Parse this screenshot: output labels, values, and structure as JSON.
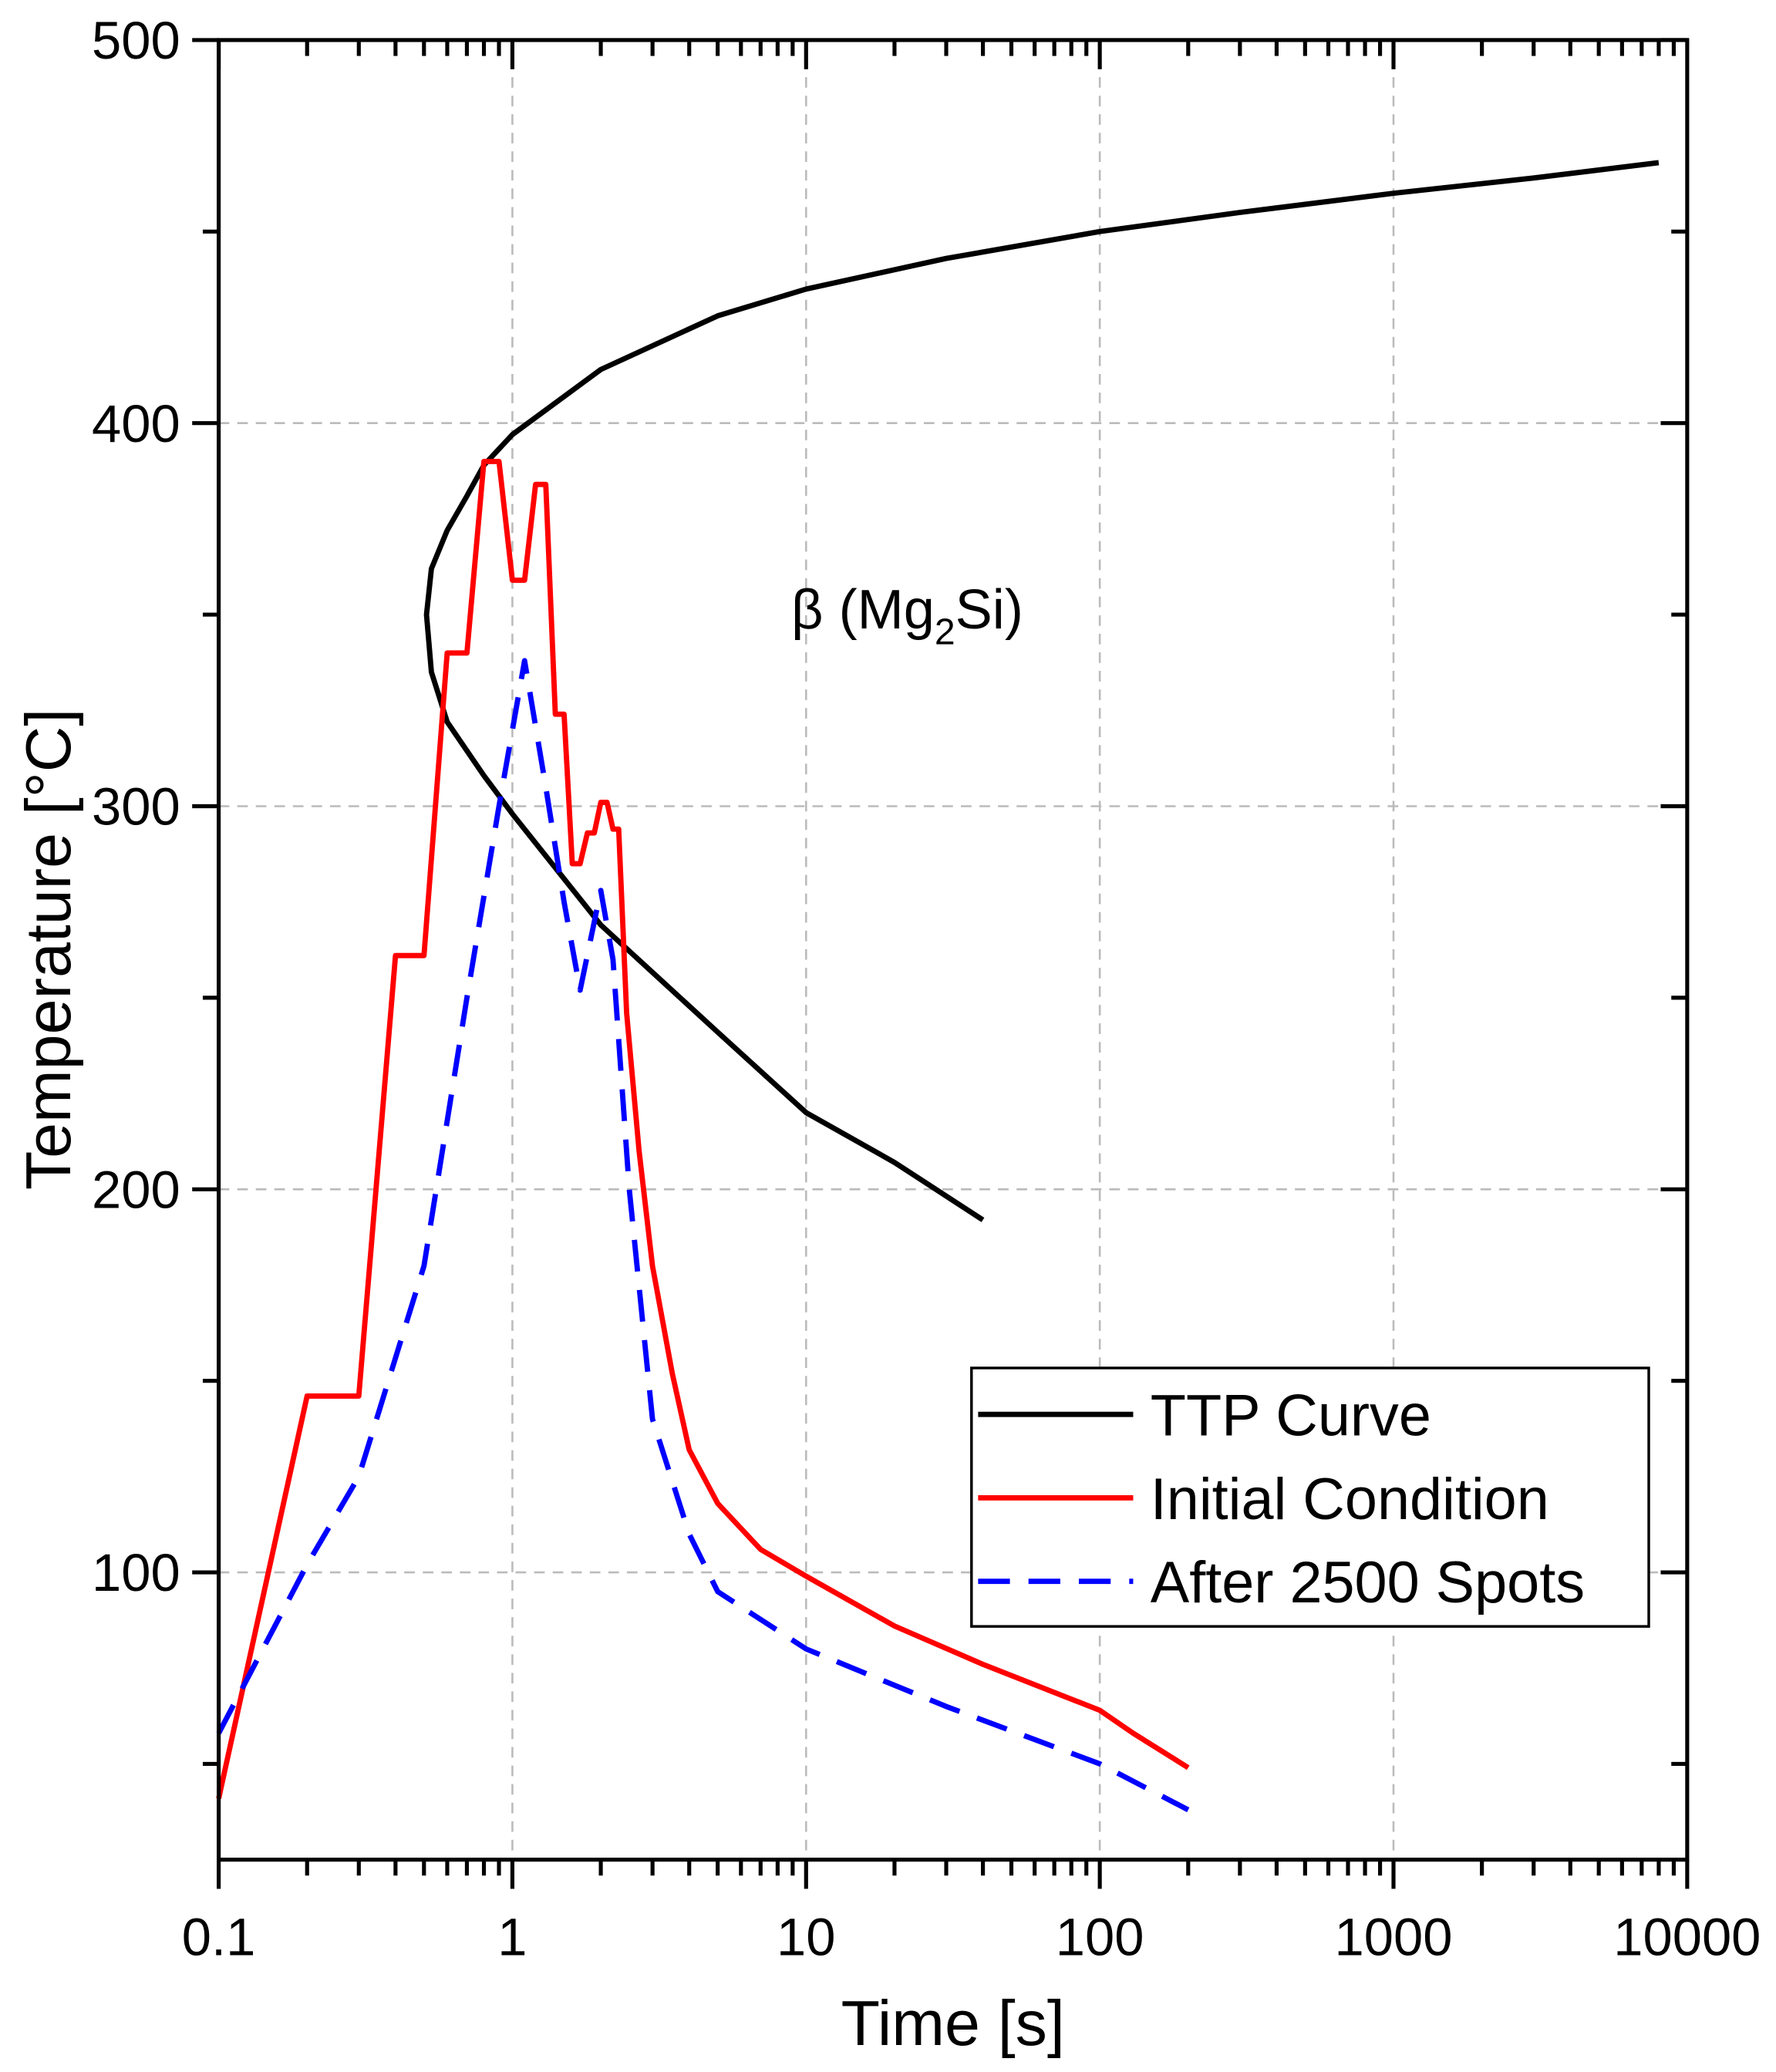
{
  "chart_data": {
    "type": "line",
    "title": "",
    "xlabel": "Time [s]",
    "ylabel": "Temperature [°C]",
    "xscale": "log",
    "xlim": [
      0.1,
      10000
    ],
    "ylim": [
      25,
      500
    ],
    "xticks": [
      0.1,
      1,
      10,
      100,
      1000,
      10000
    ],
    "xtick_labels": [
      "0.1",
      "1",
      "10",
      "100",
      "1000",
      "10000"
    ],
    "yticks": [
      100,
      200,
      300,
      400,
      500
    ],
    "ytick_labels": [
      "100",
      "200",
      "300",
      "400",
      "500"
    ],
    "grid": true,
    "legend_position": "lower-right",
    "annotation": {
      "text": "β (Mg",
      "sub": "2",
      "tail": "Si)",
      "x": 2.8,
      "y": 350
    },
    "series": [
      {
        "name": "TTP Curve",
        "color": "#000000",
        "dash": "solid",
        "points": [
          [
            40,
            192
          ],
          [
            20,
            207
          ],
          [
            10,
            220
          ],
          [
            5,
            241
          ],
          [
            2,
            269
          ],
          [
            1,
            298
          ],
          [
            0.8,
            308
          ],
          [
            0.6,
            322
          ],
          [
            0.53,
            335
          ],
          [
            0.51,
            350
          ],
          [
            0.53,
            362
          ],
          [
            0.6,
            372
          ],
          [
            0.7,
            381
          ],
          [
            0.8,
            389
          ],
          [
            1,
            397
          ],
          [
            2,
            414
          ],
          [
            5,
            428
          ],
          [
            10,
            435
          ],
          [
            30,
            443
          ],
          [
            100,
            450
          ],
          [
            300,
            455
          ],
          [
            1000,
            460
          ],
          [
            3000,
            464
          ],
          [
            8000,
            468
          ]
        ]
      },
      {
        "name": "Initial Condition",
        "color": "#ff0000",
        "dash": "solid",
        "points": [
          [
            0.1,
            41
          ],
          [
            0.2,
            146
          ],
          [
            0.3,
            146
          ],
          [
            0.4,
            261
          ],
          [
            0.5,
            261
          ],
          [
            0.6,
            340
          ],
          [
            0.7,
            340
          ],
          [
            0.8,
            390
          ],
          [
            0.9,
            390
          ],
          [
            1.0,
            359
          ],
          [
            1.1,
            359
          ],
          [
            1.2,
            384
          ],
          [
            1.3,
            384
          ],
          [
            1.4,
            324
          ],
          [
            1.5,
            324
          ],
          [
            1.6,
            285
          ],
          [
            1.7,
            285
          ],
          [
            1.8,
            293
          ],
          [
            1.9,
            293
          ],
          [
            2.0,
            301
          ],
          [
            2.1,
            301
          ],
          [
            2.2,
            294
          ],
          [
            2.3,
            294
          ],
          [
            2.45,
            246
          ],
          [
            2.7,
            210
          ],
          [
            3,
            180
          ],
          [
            3.5,
            152
          ],
          [
            4,
            132
          ],
          [
            5,
            118
          ],
          [
            7,
            106
          ],
          [
            10,
            99
          ],
          [
            20,
            86
          ],
          [
            40,
            76
          ],
          [
            100,
            64
          ],
          [
            130,
            58
          ],
          [
            200,
            49
          ]
        ]
      },
      {
        "name": "After 2500 Spots",
        "color": "#0000ff",
        "dash": "dashed",
        "points": [
          [
            0.1,
            58
          ],
          [
            0.2,
            102
          ],
          [
            0.3,
            125
          ],
          [
            0.5,
            180
          ],
          [
            0.7,
            250
          ],
          [
            0.9,
            300
          ],
          [
            1.1,
            338
          ],
          [
            1.3,
            305
          ],
          [
            1.5,
            275
          ],
          [
            1.7,
            252
          ],
          [
            2.0,
            278
          ],
          [
            2.2,
            260
          ],
          [
            2.5,
            200
          ],
          [
            3,
            140
          ],
          [
            4,
            110
          ],
          [
            5,
            95
          ],
          [
            10,
            80
          ],
          [
            30,
            65
          ],
          [
            100,
            50
          ],
          [
            200,
            38
          ]
        ]
      }
    ]
  }
}
